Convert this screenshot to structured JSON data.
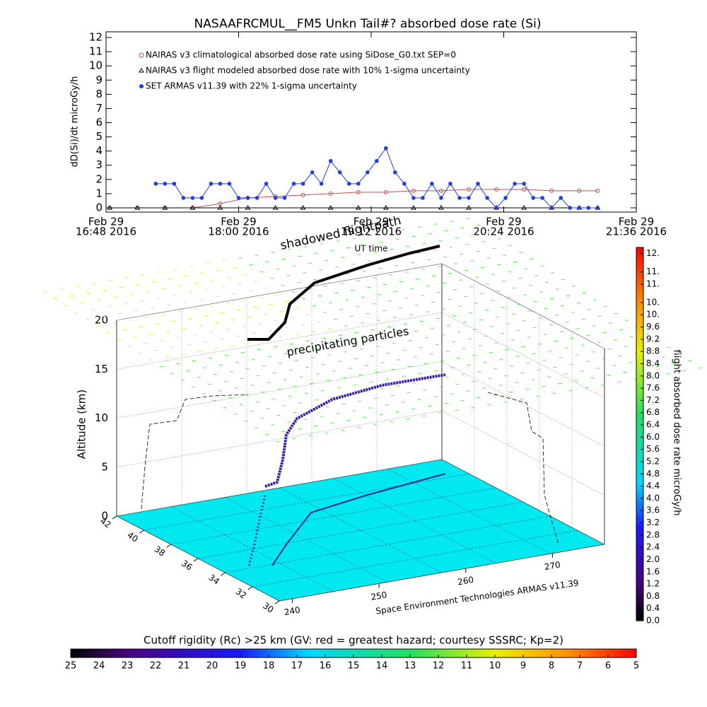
{
  "chart_data": [
    {
      "type": "line",
      "title": "NASAAFRCMUL__FM5 Unkn Tail#? absorbed dose rate (Si)",
      "ylabel": "dD(Si)/dt microGy/h",
      "xlabel": "UT time",
      "legend": "top-left",
      "xlim": [
        "2016-02-29T16:48",
        "2016-02-29T21:36"
      ],
      "xticks": [
        {
          "value": "2016-02-29T16:48",
          "label": [
            "Feb 29",
            "16:48 2016"
          ]
        },
        {
          "value": "2016-02-29T18:00",
          "label": [
            "Feb 29",
            "18:00 2016"
          ]
        },
        {
          "value": "2016-02-29T19:12",
          "label": [
            "Feb 29",
            "19:12 2016"
          ]
        },
        {
          "value": "2016-02-29T20:24",
          "label": [
            "Feb 29",
            "20:24 2016"
          ]
        },
        {
          "value": "2016-02-29T21:36",
          "label": [
            "Feb 29",
            "21:36 2016"
          ]
        }
      ],
      "ylim": [
        -0.3,
        12.4
      ],
      "yticks": [
        0,
        1,
        2,
        3,
        4,
        5,
        6,
        7,
        8,
        9,
        10,
        11,
        12
      ],
      "series": [
        {
          "name": "NAIRAS v3 climatological absorbed dose rate using SiDose_G0.txt SEP=0",
          "color": "#c0504d",
          "marker": "circle-x",
          "x": [
            "2016-02-29T16:50",
            "2016-02-29T17:05",
            "2016-02-29T17:20",
            "2016-02-29T17:35",
            "2016-02-29T17:50",
            "2016-02-29T18:05",
            "2016-02-29T18:20",
            "2016-02-29T18:35",
            "2016-02-29T18:50",
            "2016-02-29T19:05",
            "2016-02-29T19:20",
            "2016-02-29T19:35",
            "2016-02-29T19:50",
            "2016-02-29T20:05",
            "2016-02-29T20:20",
            "2016-02-29T20:35",
            "2016-02-29T20:50",
            "2016-02-29T21:05",
            "2016-02-29T21:15"
          ],
          "values": [
            0,
            0,
            0,
            0,
            0.3,
            0.7,
            0.8,
            0.9,
            1.0,
            1.1,
            1.1,
            1.2,
            1.2,
            1.3,
            1.3,
            1.3,
            1.2,
            1.2,
            1.2
          ]
        },
        {
          "name": "NAIRAS v3 flight modeled absorbed dose rate with 10% 1-sigma uncertainty",
          "color": "#000000",
          "marker": "triangle",
          "x": [
            "2016-02-29T16:50",
            "2016-02-29T17:05",
            "2016-02-29T17:20",
            "2016-02-29T17:35",
            "2016-02-29T17:50",
            "2016-02-29T18:05",
            "2016-02-29T18:20",
            "2016-02-29T18:35",
            "2016-02-29T18:50",
            "2016-02-29T19:05",
            "2016-02-29T19:20",
            "2016-02-29T19:35",
            "2016-02-29T19:50",
            "2016-02-29T20:05",
            "2016-02-29T20:20",
            "2016-02-29T20:35",
            "2016-02-29T20:50",
            "2016-02-29T21:05",
            "2016-02-29T21:15"
          ],
          "values": [
            0,
            0,
            0,
            0,
            0,
            0,
            0,
            0,
            0,
            0,
            0,
            0,
            0,
            0,
            0,
            0,
            0,
            0,
            0
          ]
        },
        {
          "name": "SET ARMAS v11.39 with 22% 1-sigma uncertainty",
          "color": "#1f3fe0",
          "marker": "dot",
          "x": [
            "2016-02-29T17:15",
            "2016-02-29T17:20",
            "2016-02-29T17:25",
            "2016-02-29T17:30",
            "2016-02-29T17:35",
            "2016-02-29T17:40",
            "2016-02-29T17:45",
            "2016-02-29T17:50",
            "2016-02-29T17:55",
            "2016-02-29T18:00",
            "2016-02-29T18:05",
            "2016-02-29T18:10",
            "2016-02-29T18:15",
            "2016-02-29T18:20",
            "2016-02-29T18:25",
            "2016-02-29T18:30",
            "2016-02-29T18:35",
            "2016-02-29T18:40",
            "2016-02-29T18:45",
            "2016-02-29T18:50",
            "2016-02-29T18:55",
            "2016-02-29T19:00",
            "2016-02-29T19:05",
            "2016-02-29T19:10",
            "2016-02-29T19:15",
            "2016-02-29T19:20",
            "2016-02-29T19:25",
            "2016-02-29T19:30",
            "2016-02-29T19:35",
            "2016-02-29T19:40",
            "2016-02-29T19:45",
            "2016-02-29T19:50",
            "2016-02-29T19:55",
            "2016-02-29T20:00",
            "2016-02-29T20:05",
            "2016-02-29T20:10",
            "2016-02-29T20:15",
            "2016-02-29T20:20",
            "2016-02-29T20:25",
            "2016-02-29T20:30",
            "2016-02-29T20:35",
            "2016-02-29T20:40",
            "2016-02-29T20:45",
            "2016-02-29T20:50",
            "2016-02-29T20:55",
            "2016-02-29T21:00",
            "2016-02-29T21:05",
            "2016-02-29T21:10",
            "2016-02-29T21:15"
          ],
          "values": [
            1.7,
            1.7,
            1.7,
            0.7,
            0.7,
            0.7,
            1.7,
            1.7,
            1.7,
            0.7,
            0.7,
            0.7,
            1.7,
            0.7,
            0.7,
            1.7,
            1.7,
            2.5,
            1.7,
            3.3,
            2.5,
            1.7,
            1.7,
            2.5,
            3.3,
            4.2,
            2.5,
            1.7,
            0.7,
            0.7,
            1.7,
            0.7,
            1.7,
            0.7,
            0.7,
            1.7,
            0.7,
            0,
            0.7,
            1.7,
            1.7,
            0.7,
            0.7,
            0,
            0.7,
            0,
            0,
            0,
            0
          ]
        }
      ]
    },
    {
      "type": "surface3d",
      "annotations": [
        "shadowed flightpath",
        "precipitating particles"
      ],
      "zlabel": "Altitude (km)",
      "zlim": [
        0,
        20
      ],
      "zticks": [
        0,
        5,
        10,
        15,
        20
      ],
      "latlim": [
        42,
        30
      ],
      "latticks": [
        42,
        40,
        38,
        36,
        34,
        32,
        30
      ],
      "lonlim": [
        238.5,
        276
      ],
      "lonticks": [
        240,
        250,
        260,
        270
      ],
      "credit": "Space Environment Technologies ARMAS v11.39",
      "colorbar": {
        "label": "flight absorbed dose rate microGy/h",
        "lim": [
          0,
          12.2
        ],
        "ticks": [
          {
            "value": 0,
            "label": "0.0"
          },
          0.4,
          0.8,
          1.2,
          1.6,
          {
            "value": 2,
            "label": "2.0"
          },
          2.4,
          2.8,
          3.2,
          3.6,
          {
            "value": 4,
            "label": "4.0"
          },
          4.4,
          4.8,
          5.2,
          5.6,
          {
            "value": 6,
            "label": "6.0"
          },
          6.4,
          6.8,
          7.2,
          7.6,
          {
            "value": 8,
            "label": "8.0"
          },
          8.4,
          8.8,
          9.2,
          9.6,
          {
            "value": 10,
            "label": "10."
          },
          {
            "value": 10.4,
            "label": "10."
          },
          {
            "value": 11,
            "label": "11."
          },
          {
            "value": 11.4,
            "label": "11."
          },
          {
            "value": 12,
            "label": "12."
          }
        ]
      },
      "rigidity_bar": {
        "label": "Cutoff rigidity (Rc) >25 km (GV: red = greatest hazard; courtesy SSSRC; Kp=2)",
        "lim": [
          25,
          5
        ],
        "ticks": [
          25,
          24,
          23,
          22,
          21,
          20,
          19,
          18,
          17,
          16,
          15,
          14,
          13,
          12,
          11,
          10,
          9,
          8,
          7,
          6,
          5
        ]
      }
    }
  ]
}
